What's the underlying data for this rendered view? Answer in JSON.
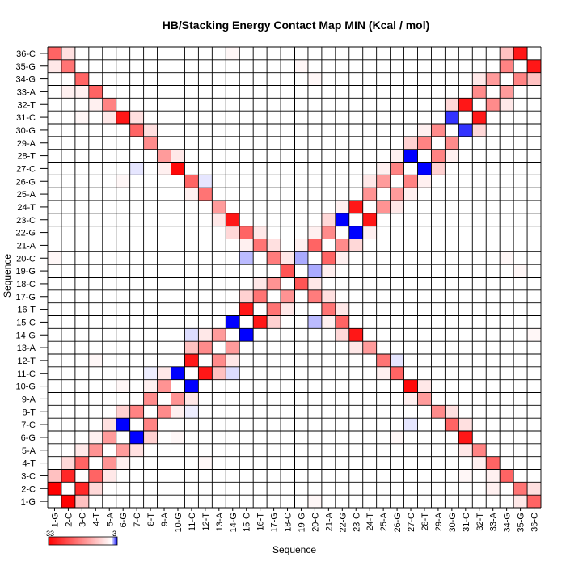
{
  "chart_data": {
    "type": "heatmap",
    "title": "HB/Stacking Energy Contact Map MIN (Kcal / mol)",
    "xlabel": "Sequence",
    "ylabel": "Sequence",
    "labels": [
      "1-G",
      "2-C",
      "3-C",
      "4-T",
      "5-A",
      "6-G",
      "7-C",
      "8-T",
      "9-A",
      "10-G",
      "11-C",
      "12-T",
      "13-A",
      "14-G",
      "15-C",
      "16-T",
      "17-G",
      "18-C",
      "19-G",
      "20-C",
      "21-A",
      "22-G",
      "23-C",
      "24-T",
      "25-A",
      "26-G",
      "27-C",
      "28-T",
      "29-A",
      "30-G",
      "31-C",
      "32-T",
      "33-A",
      "34-G",
      "35-G",
      "36-C"
    ],
    "colorbar": {
      "min": -33,
      "max": 3,
      "min_label": "-33",
      "max_label": "3",
      "min_color": "#ff0000",
      "mid_color": "#ffffff",
      "max_color": "#0000ff"
    },
    "grid": true,
    "cells": [
      [
        1,
        2,
        -33
      ],
      [
        2,
        3,
        -28
      ],
      [
        3,
        4,
        -20
      ],
      [
        4,
        5,
        -14
      ],
      [
        5,
        6,
        -13
      ],
      [
        6,
        7,
        -30
      ],
      [
        7,
        8,
        -16
      ],
      [
        8,
        9,
        -15
      ],
      [
        9,
        10,
        -14
      ],
      [
        10,
        11,
        -32
      ],
      [
        11,
        12,
        -30
      ],
      [
        12,
        13,
        -15
      ],
      [
        13,
        14,
        -13
      ],
      [
        14,
        15,
        -31
      ],
      [
        15,
        16,
        -30
      ],
      [
        16,
        17,
        -18
      ],
      [
        17,
        18,
        -14
      ],
      [
        18,
        19,
        -27
      ],
      [
        19,
        20,
        -31
      ],
      [
        20,
        21,
        -20
      ],
      [
        21,
        22,
        -15
      ],
      [
        22,
        23,
        -17
      ],
      [
        23,
        24,
        -30
      ],
      [
        24,
        25,
        -14
      ],
      [
        25,
        26,
        -13
      ],
      [
        26,
        27,
        -16
      ],
      [
        27,
        28,
        -30
      ],
      [
        28,
        29,
        -16
      ],
      [
        29,
        30,
        -15
      ],
      [
        30,
        31,
        -31
      ],
      [
        31,
        32,
        -30
      ],
      [
        32,
        33,
        -15
      ],
      [
        33,
        34,
        -13
      ],
      [
        34,
        35,
        -16
      ],
      [
        35,
        36,
        -30
      ],
      [
        6,
        31,
        -30
      ],
      [
        10,
        27,
        -32
      ],
      [
        14,
        23,
        -30
      ],
      [
        7,
        30,
        -20
      ],
      [
        11,
        26,
        -20
      ],
      [
        15,
        22,
        -20
      ],
      [
        1,
        36,
        -20
      ],
      [
        2,
        35,
        -18
      ],
      [
        3,
        34,
        -20
      ],
      [
        4,
        33,
        -20
      ],
      [
        5,
        32,
        -16
      ],
      [
        8,
        29,
        -15
      ],
      [
        9,
        28,
        -13
      ],
      [
        12,
        25,
        -18
      ],
      [
        13,
        24,
        -13
      ],
      [
        16,
        21,
        -18
      ],
      [
        17,
        20,
        -17
      ],
      [
        18,
        19,
        -22
      ],
      [
        1,
        3,
        -8
      ],
      [
        2,
        4,
        -5
      ],
      [
        5,
        7,
        -4
      ],
      [
        6,
        8,
        -6
      ],
      [
        11,
        13,
        -8
      ],
      [
        15,
        17,
        -6
      ],
      [
        21,
        23,
        -5
      ],
      [
        27,
        29,
        -6
      ],
      [
        30,
        32,
        -5
      ],
      [
        34,
        36,
        -8
      ],
      [
        5,
        31,
        -3
      ],
      [
        9,
        27,
        -2
      ],
      [
        13,
        23,
        -3
      ],
      [
        7,
        31,
        -4
      ],
      [
        4,
        32,
        -2
      ],
      [
        3,
        33,
        -2
      ],
      [
        2,
        36,
        -4
      ],
      [
        1,
        35,
        -3
      ],
      [
        8,
        30,
        -4
      ],
      [
        12,
        26,
        -3
      ],
      [
        16,
        22,
        -3
      ],
      [
        17,
        21,
        -4
      ],
      [
        14,
        22,
        -5
      ],
      [
        10,
        28,
        -3
      ],
      [
        11,
        25,
        -2
      ],
      [
        15,
        21,
        -2
      ],
      [
        2,
        33,
        -2
      ],
      [
        3,
        31,
        -1
      ],
      [
        6,
        26,
        -1
      ],
      [
        18,
        20,
        -3
      ],
      [
        19,
        21,
        -2
      ],
      [
        24,
        26,
        -3
      ],
      [
        28,
        30,
        -2
      ],
      [
        32,
        34,
        -3
      ],
      [
        20,
        22,
        -2
      ],
      [
        25,
        27,
        -2
      ],
      [
        12,
        14,
        -3
      ],
      [
        8,
        10,
        -2
      ],
      [
        9,
        11,
        -3
      ],
      [
        3,
        5,
        -3
      ],
      [
        4,
        6,
        -2
      ],
      [
        16,
        18,
        -3
      ],
      [
        22,
        24,
        -2
      ],
      [
        26,
        28,
        -2
      ],
      [
        6,
        10,
        -1
      ],
      [
        4,
        12,
        -1
      ],
      [
        19,
        35,
        -1
      ],
      [
        20,
        34,
        -1
      ],
      [
        1,
        20,
        -1
      ],
      [
        14,
        36,
        -1
      ]
    ],
    "positive_cells": [
      [
        6,
        7,
        3
      ],
      [
        10,
        11,
        3
      ],
      [
        14,
        15,
        3
      ],
      [
        27,
        28,
        3
      ],
      [
        30,
        31,
        2.4
      ],
      [
        22,
        23,
        3
      ],
      [
        19,
        20,
        1
      ],
      [
        15,
        20,
        0.8
      ],
      [
        11,
        14,
        0.4
      ],
      [
        12,
        26,
        0.3
      ],
      [
        7,
        27,
        0.3
      ],
      [
        8,
        11,
        0.2
      ]
    ]
  }
}
